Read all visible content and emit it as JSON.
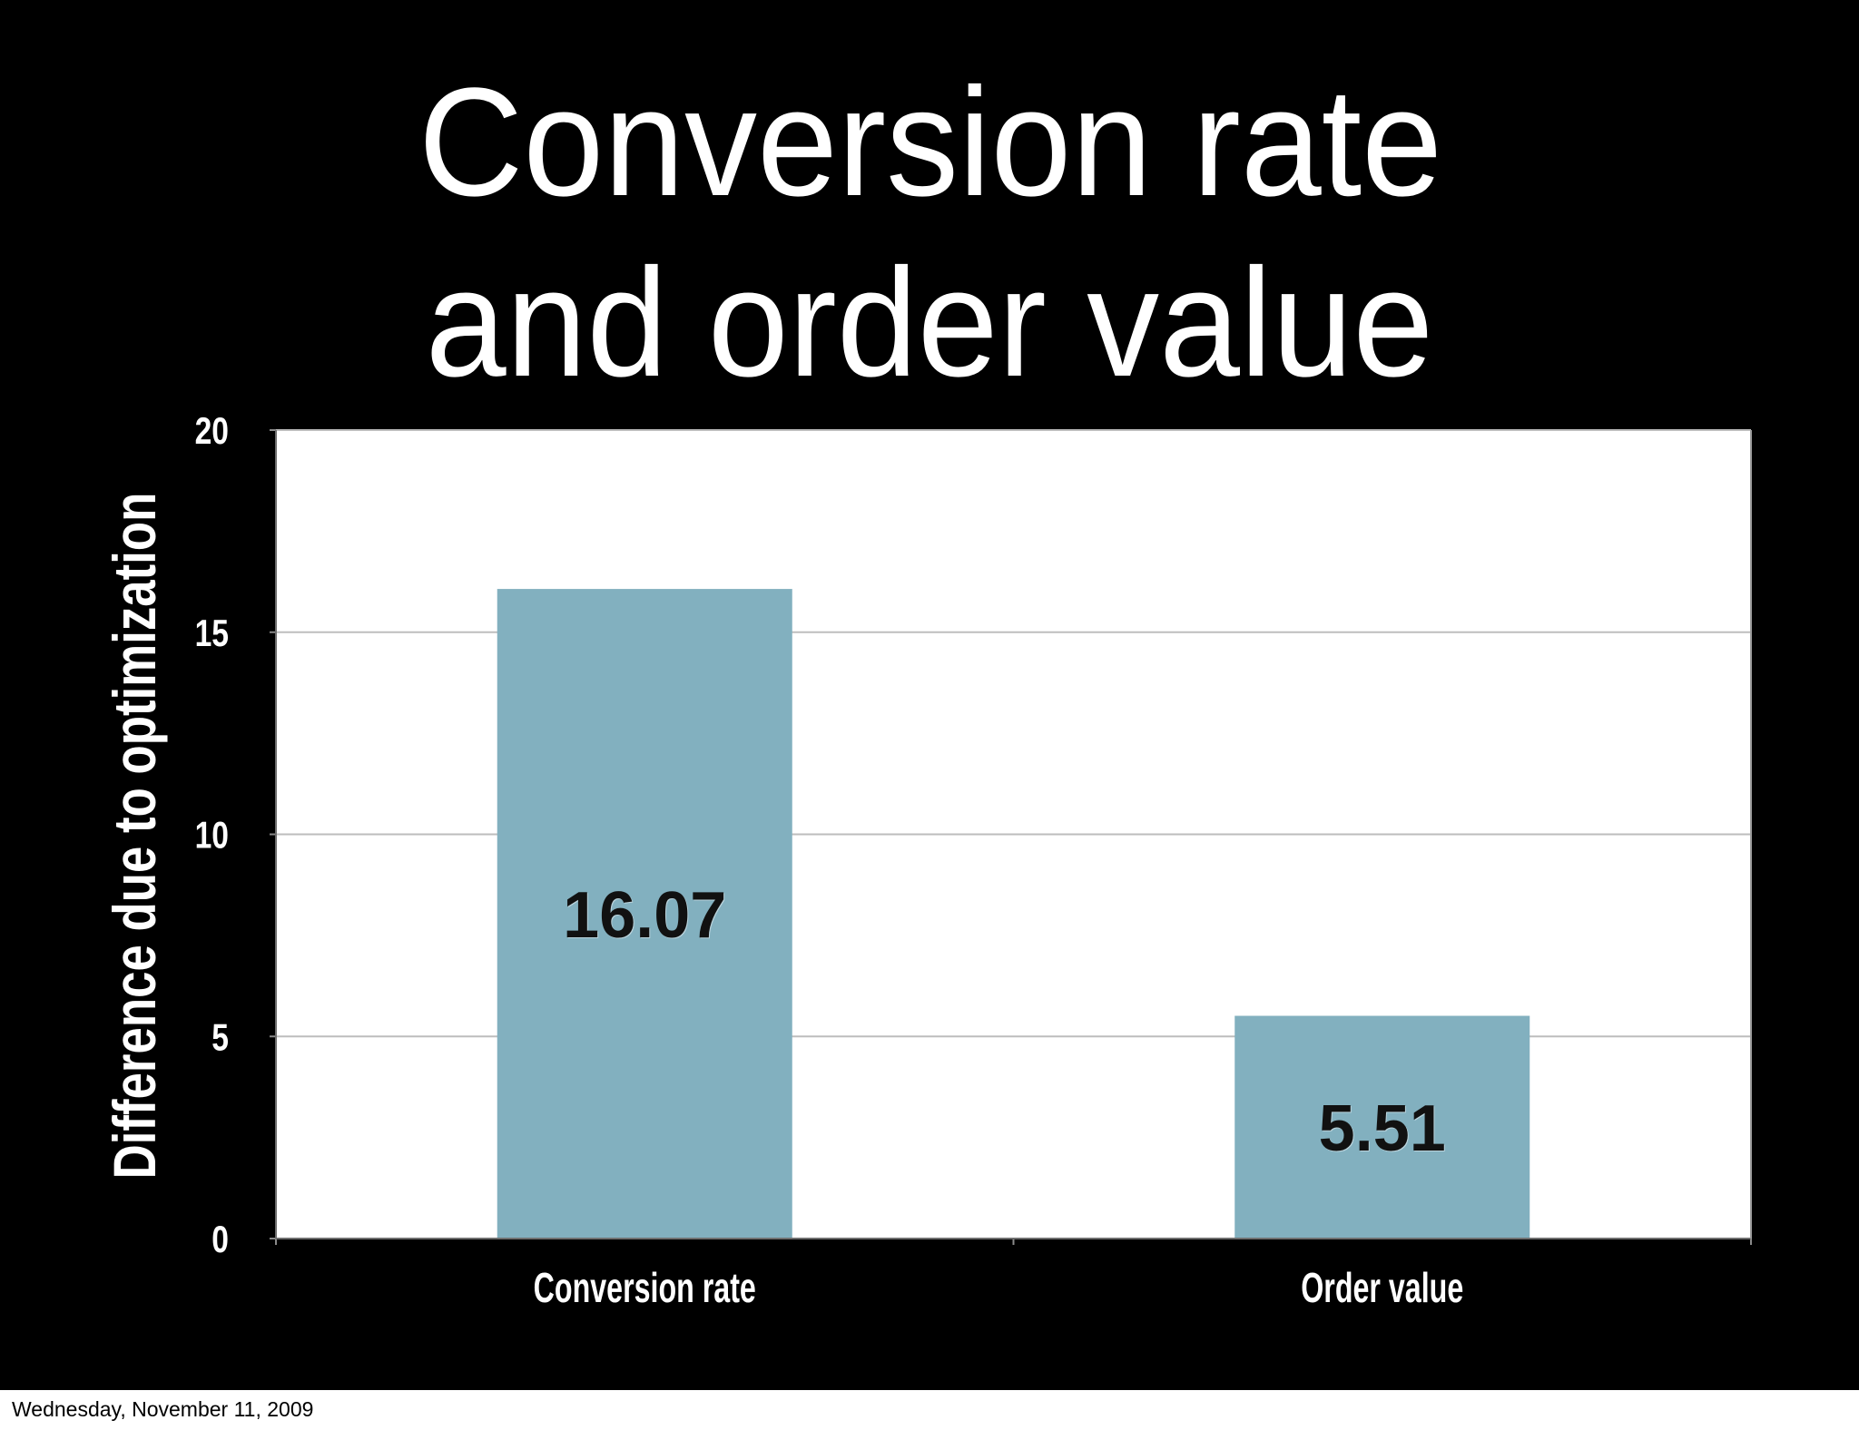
{
  "chart_data": {
    "type": "bar",
    "title_lines": [
      "Conversion rate",
      "and order value"
    ],
    "categories": [
      "Conversion rate",
      "Order value"
    ],
    "values": [
      16.07,
      5.51
    ],
    "ylabel": "Difference due to optimization",
    "ylim": [
      0,
      20
    ],
    "yticks": [
      0,
      5,
      10,
      15,
      20
    ],
    "grid": true,
    "legend": "none",
    "data_labels": true,
    "colors": {
      "bar": "#82b0bf",
      "background": "#000000",
      "plot_background": "#ffffff",
      "gridline": "#bdbdbd"
    }
  },
  "footer": {
    "date": "Wednesday, November 11, 2009"
  }
}
